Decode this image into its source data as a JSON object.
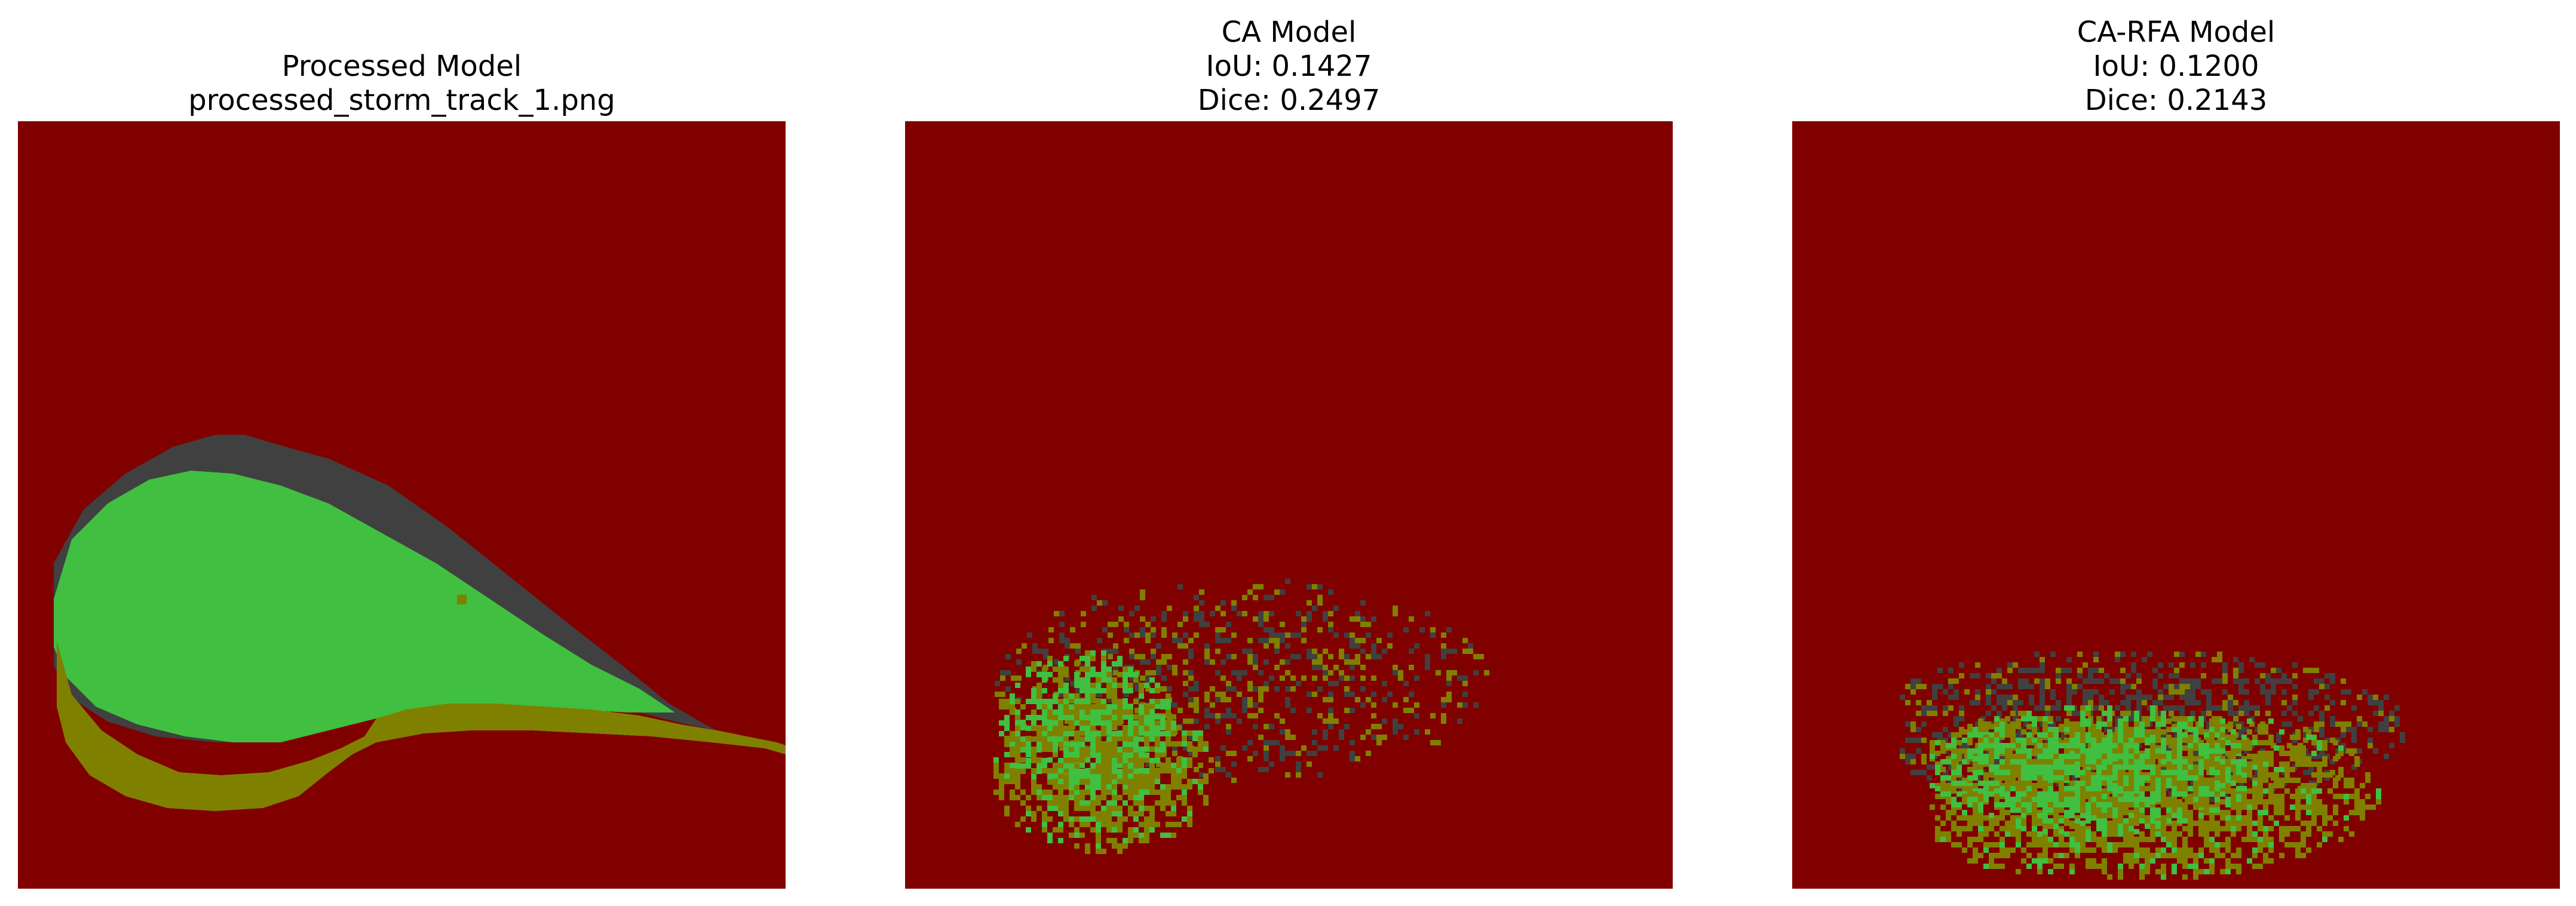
{
  "figure": {
    "panels": [
      {
        "title_lines": [
          "Processed Model",
          "processed_storm_track_1.png"
        ],
        "image_description_name": "processed-segmentation-map"
      },
      {
        "title_lines": [
          "CA Model",
          "IoU: 0.1427",
          "Dice: 0.2497"
        ],
        "image_description_name": "ca-segmentation-map"
      },
      {
        "title_lines": [
          "CA-RFA Model",
          "IoU: 0.1200",
          "Dice: 0.2143"
        ],
        "image_description_name": "ca-rfa-segmentation-map"
      }
    ]
  },
  "colors": {
    "background_class": "#800000",
    "dark_class": "#404040",
    "green_class": "#40bf40",
    "olive_class": "#808000"
  }
}
